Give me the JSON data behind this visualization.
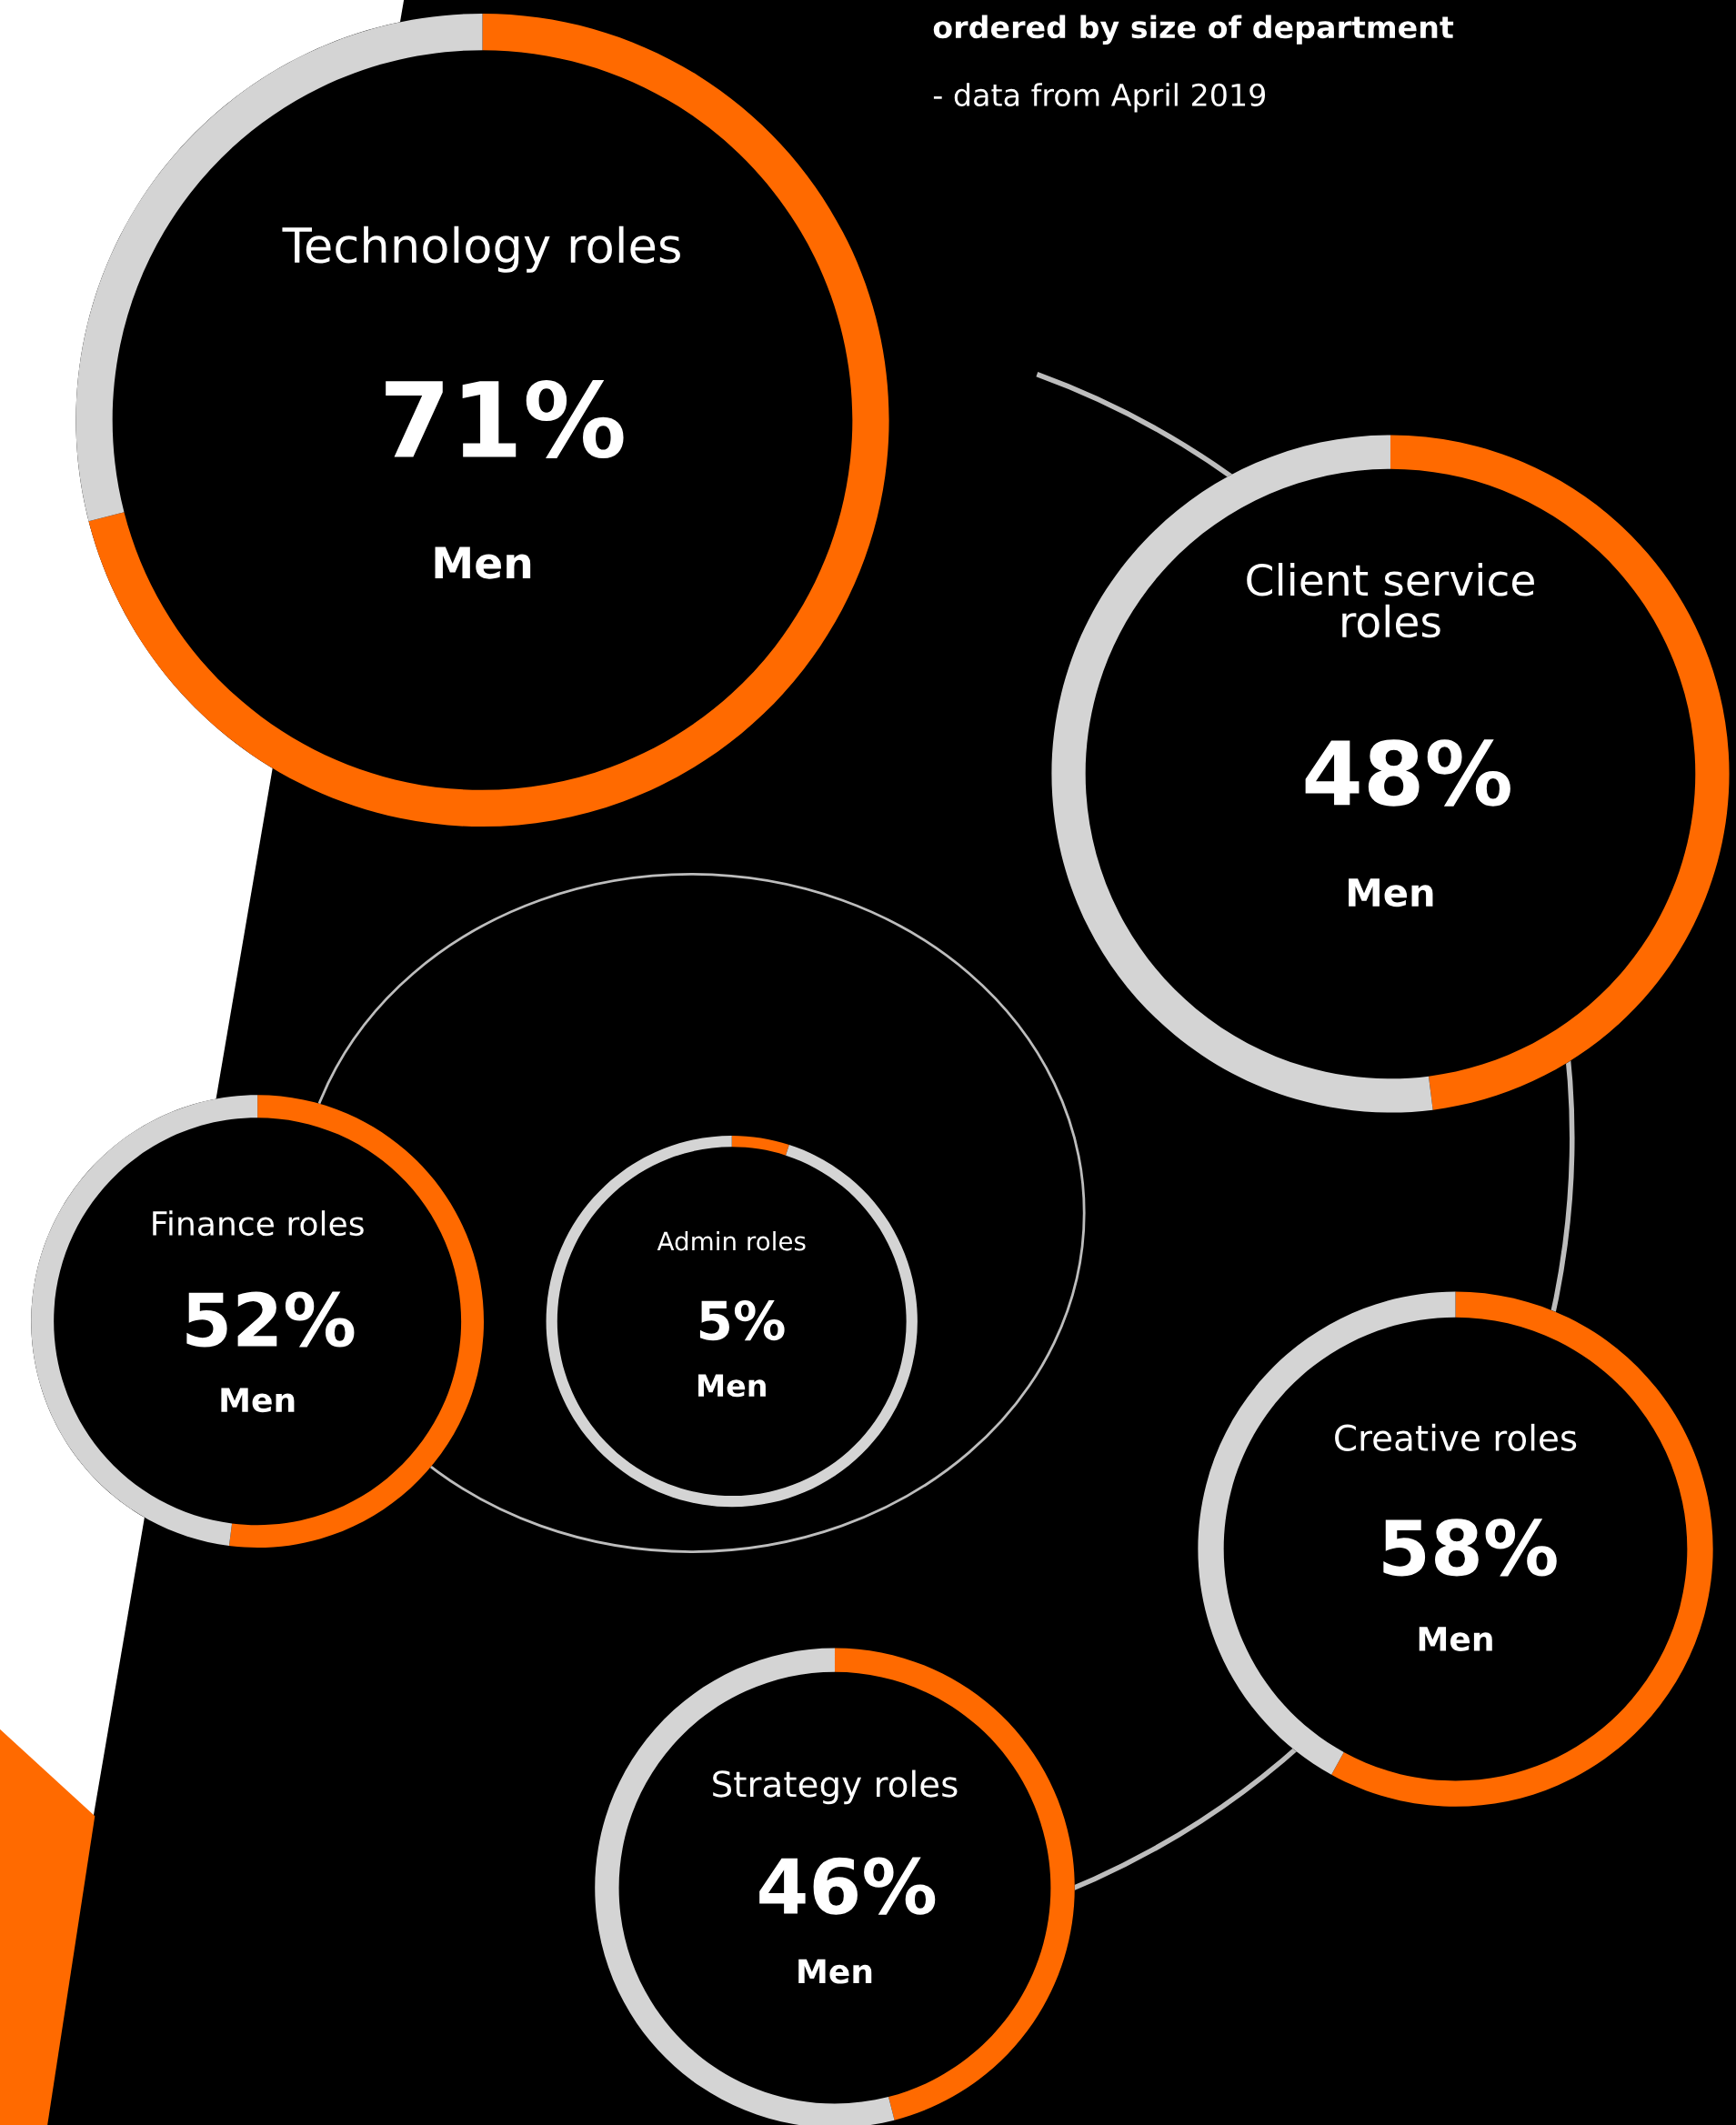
{
  "chart_data": [
    {
      "type": "other",
      "title": "ordered by size of department",
      "subtitle": "- data from April 2019"
    },
    {
      "type": "donut",
      "title": "Technology roles",
      "annotations": [
        "71%",
        "Men"
      ],
      "categories": [
        null,
        null
      ],
      "values": [
        71,
        29
      ],
      "colors": [
        "#ff6a00",
        "#d4d4d4"
      ]
    },
    {
      "type": "donut",
      "title": "Client service roles",
      "annotations": [
        "48%",
        "Men"
      ],
      "categories": [
        null,
        null
      ],
      "values": [
        48,
        52
      ],
      "colors": [
        "#ff6a00",
        "#d4d4d4"
      ]
    },
    {
      "type": "donut",
      "title": "Finance roles",
      "annotations": [
        "52%",
        "Men"
      ],
      "categories": [
        null,
        null
      ],
      "values": [
        52,
        48
      ],
      "colors": [
        "#ff6a00",
        "#d4d4d4"
      ]
    },
    {
      "type": "donut",
      "title": "Admin roles",
      "annotations": [
        "5%",
        "Men"
      ],
      "categories": [
        null,
        null
      ],
      "values": [
        5,
        95
      ],
      "colors": [
        "#ff6a00",
        "#d4d4d4"
      ]
    },
    {
      "type": "donut",
      "title": "Creative roles",
      "annotations": [
        "58%",
        "Men"
      ],
      "categories": [
        null,
        null
      ],
      "values": [
        58,
        42
      ],
      "colors": [
        "#ff6a00",
        "#d4d4d4"
      ]
    },
    {
      "type": "donut",
      "title": "Strategy roles",
      "annotations": [
        "46%",
        "Men"
      ],
      "categories": [
        null,
        null
      ],
      "values": [
        46,
        54
      ],
      "colors": [
        "#ff6a00",
        "#d4d4d4"
      ]
    }
  ]
}
